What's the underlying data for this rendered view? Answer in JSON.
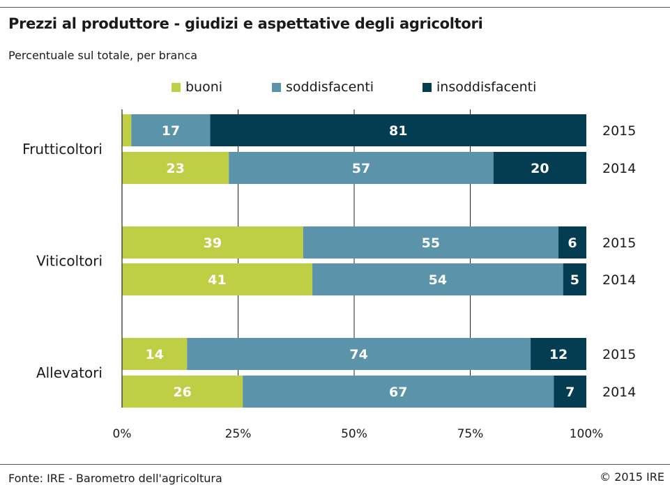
{
  "title": "Prezzi al produttore - giudizi e aspettative degli agricoltori",
  "subtitle": "Percentuale sul totale, per branca",
  "source": "Fonte: IRE - Barometro dell'agricoltura",
  "copyright": "© 2015 IRE",
  "colors": {
    "buoni": "#bfcf45",
    "soddisfacenti": "#5b93aa",
    "insoddisfacenti": "#043c52"
  },
  "chart_data": {
    "type": "bar",
    "orientation": "horizontal",
    "stacked": true,
    "percent": true,
    "legend_position": "top",
    "grid": true,
    "xlim": [
      0,
      100
    ],
    "xticks": [
      "0%",
      "25%",
      "50%",
      "75%",
      "100%"
    ],
    "legend": [
      "buoni",
      "soddisfacenti",
      "insoddisfacenti"
    ],
    "groups": [
      {
        "label": "Frutticoltori",
        "bars": [
          {
            "year": "2015",
            "buoni": 2,
            "soddisfacenti": 17,
            "insoddisfacenti": 81
          },
          {
            "year": "2014",
            "buoni": 23,
            "soddisfacenti": 57,
            "insoddisfacenti": 20
          }
        ]
      },
      {
        "label": "Viticoltori",
        "bars": [
          {
            "year": "2015",
            "buoni": 39,
            "soddisfacenti": 55,
            "insoddisfacenti": 6
          },
          {
            "year": "2014",
            "buoni": 41,
            "soddisfacenti": 54,
            "insoddisfacenti": 5
          }
        ]
      },
      {
        "label": "Allevatori",
        "bars": [
          {
            "year": "2015",
            "buoni": 14,
            "soddisfacenti": 74,
            "insoddisfacenti": 12
          },
          {
            "year": "2014",
            "buoni": 26,
            "soddisfacenti": 67,
            "insoddisfacenti": 7
          }
        ]
      }
    ]
  }
}
